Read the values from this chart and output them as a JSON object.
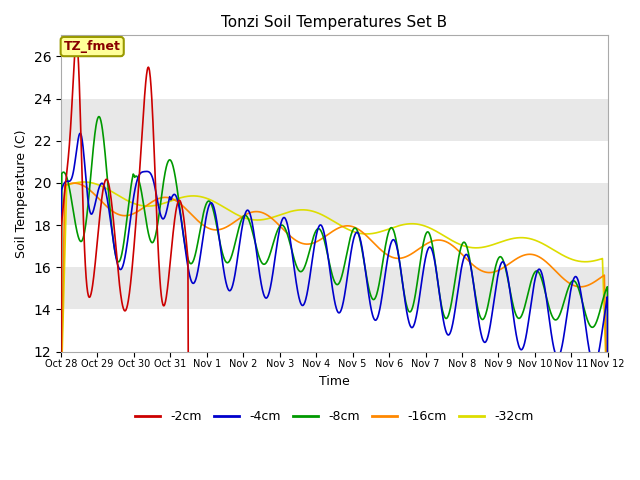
{
  "title": "Tonzi Soil Temperatures Set B",
  "xlabel": "Time",
  "ylabel": "Soil Temperature (C)",
  "ylim": [
    12,
    27
  ],
  "yticks": [
    12,
    14,
    16,
    18,
    20,
    22,
    24,
    26
  ],
  "colors": {
    "-2cm": "#cc0000",
    "-4cm": "#0000cc",
    "-8cm": "#009900",
    "-16cm": "#ff8800",
    "-32cm": "#dddd00"
  },
  "legend_labels": [
    "-2cm",
    "-4cm",
    "-8cm",
    "-16cm",
    "-32cm"
  ],
  "annotation_text": "TZ_fmet",
  "annotation_color": "#880000",
  "annotation_bg": "#ffff99",
  "annotation_edge": "#999900",
  "bg_band_color": "#e8e8e8",
  "xtick_labels": [
    "Oct 28",
    "Oct 29",
    "Oct 30",
    "Oct 31",
    "Nov 1",
    "Nov 2",
    "Nov 3",
    "Nov 4",
    "Nov 5",
    "Nov 6",
    "Nov 7",
    "Nov 8",
    "Nov 9",
    "Nov 10",
    "Nov 11",
    "Nov 12"
  ],
  "n_days": 15,
  "points_per_day": 96
}
